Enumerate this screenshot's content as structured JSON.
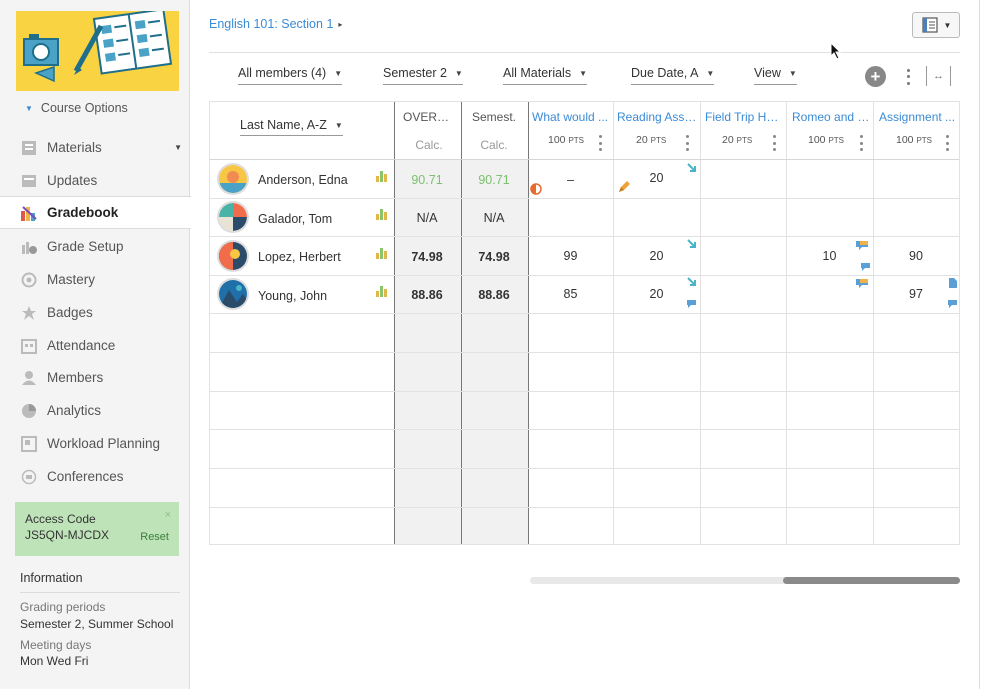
{
  "sidebar": {
    "course_options": "Course Options",
    "items": [
      {
        "label": "Materials",
        "icon": "materials-icon"
      },
      {
        "label": "Updates",
        "icon": "updates-icon"
      },
      {
        "label": "Gradebook",
        "icon": "gradebook-icon",
        "active": true
      },
      {
        "label": "Grade Setup",
        "icon": "grade-setup-icon"
      },
      {
        "label": "Mastery",
        "icon": "mastery-icon"
      },
      {
        "label": "Badges",
        "icon": "badges-icon"
      },
      {
        "label": "Attendance",
        "icon": "attendance-icon"
      },
      {
        "label": "Members",
        "icon": "members-icon"
      },
      {
        "label": "Analytics",
        "icon": "analytics-icon"
      },
      {
        "label": "Workload Planning",
        "icon": "workload-icon"
      },
      {
        "label": "Conferences",
        "icon": "conferences-icon"
      }
    ],
    "access_code": {
      "title": "Access Code",
      "code": "JS5QN-MJCDX",
      "reset": "Reset",
      "close": "×"
    },
    "information": {
      "title": "Information",
      "grading_periods_label": "Grading periods",
      "grading_periods_value": "Semester 2, Summer School",
      "meeting_days_label": "Meeting days",
      "meeting_days_value": "Mon Wed Fri"
    }
  },
  "header": {
    "breadcrumb": "English 101: Section 1",
    "breadcrumb_arrow": "▸"
  },
  "toolbar": {
    "members_filter": "All members (4)",
    "period_filter": "Semester 2",
    "materials_filter": "All Materials",
    "sort_filter": "Due Date, A",
    "view_filter": "View",
    "add": "+",
    "expand": "|↔|"
  },
  "gradebook": {
    "name_sort": "Last Name, A-Z",
    "overall": {
      "title": "OVERALL",
      "sub": "Calc."
    },
    "semester": {
      "title": "Semest.",
      "sub": "Calc."
    },
    "assignments": [
      {
        "title": "What would ...",
        "pts": "100",
        "pts_unit": "PTS"
      },
      {
        "title": "Reading Asse...",
        "pts": "20",
        "pts_unit": "PTS"
      },
      {
        "title": "Field Trip Ho...",
        "pts": "20",
        "pts_unit": "PTS"
      },
      {
        "title": "Romeo and J...",
        "pts": "100",
        "pts_unit": "PTS"
      },
      {
        "title": "Assignment ...",
        "pts": "100",
        "pts_unit": "PTS"
      }
    ],
    "students": [
      {
        "name": "Anderson, Edna",
        "overall": "90.71",
        "semester": "90.71",
        "style": "green",
        "scores": [
          "–",
          "20",
          "",
          "",
          ""
        ]
      },
      {
        "name": "Galador, Tom",
        "overall": "N/A",
        "semester": "N/A",
        "style": "plain",
        "scores": [
          "",
          "",
          "",
          "",
          ""
        ]
      },
      {
        "name": "Lopez, Herbert",
        "overall": "74.98",
        "semester": "74.98",
        "style": "bold",
        "scores": [
          "99",
          "20",
          "",
          "10",
          "90"
        ]
      },
      {
        "name": "Young, John",
        "overall": "88.86",
        "semester": "88.86",
        "style": "bold",
        "scores": [
          "85",
          "20",
          "",
          "",
          "97"
        ]
      }
    ]
  },
  "colors": {
    "accent": "#3a8bd6",
    "green": "#7ac06d",
    "access_bg": "#bfe3b9",
    "logo_bg": "#f9d342"
  }
}
